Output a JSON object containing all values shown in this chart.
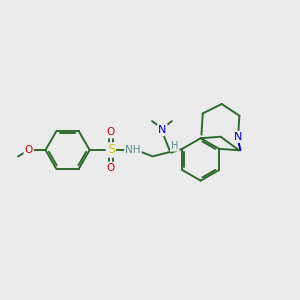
{
  "background_color": "#ebebeb",
  "bond_color": "#2d6b2d",
  "atom_colors": {
    "N": "#0000cc",
    "O": "#cc0000",
    "S": "#cccc00",
    "H": "#5a8a8a",
    "C": "#2d6b2d"
  },
  "figsize": [
    3.0,
    3.0
  ],
  "dpi": 100,
  "lw": 1.4
}
